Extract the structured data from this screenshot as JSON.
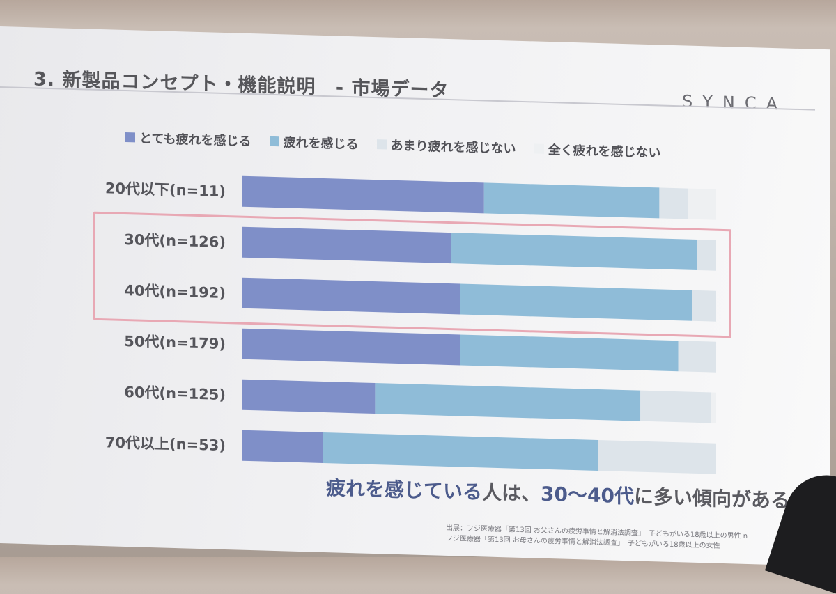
{
  "slide": {
    "title_main": "3. 新製品コンセプト・機能説明",
    "title_sub": "- 市場データ",
    "brand": "SYNCA",
    "conclusion_em1": "疲れを感じている",
    "conclusion_mid": "人は、",
    "conclusion_em2": "30～40代",
    "conclusion_tail": "に多い傾向がある。",
    "source_line1": "出展：フジ医療器「第13回 お父さんの疲労事情と解消法調査」　子どもがいる18歳以上の男性 n",
    "source_line2": "フジ医療器「第13回 お母さんの疲労事情と解消法調査」　子どもがいる18歳以上の女性"
  },
  "colors": {
    "very_tired": "#7f8fc8",
    "tired": "#8fbcd8",
    "not_very": "#dde4ea",
    "not_at_all": "#eef0f2",
    "highlight": "#e8a8b4"
  },
  "chart_data": {
    "type": "bar",
    "orientation": "horizontal",
    "stacked": "100%",
    "categories": [
      "20代以下(n=11)",
      "30代(n=126)",
      "40代(n=192)",
      "50代(n=179)",
      "60代(n=125)",
      "70代以上(n=53)"
    ],
    "series": [
      {
        "name": "とても疲れを感じる",
        "values": [
          51,
          44,
          46,
          46,
          28,
          17
        ]
      },
      {
        "name": "疲れを感じる",
        "values": [
          37,
          52,
          49,
          46,
          56,
          58
        ]
      },
      {
        "name": "あまり疲れを感じない",
        "values": [
          6,
          4,
          5,
          8,
          15,
          25
        ]
      },
      {
        "name": "全く疲れを感じない",
        "values": [
          6,
          0,
          0,
          0,
          1,
          0
        ]
      }
    ],
    "highlighted_categories": [
      "30代(n=126)",
      "40代(n=192)"
    ],
    "legend": "top",
    "grid": false
  }
}
